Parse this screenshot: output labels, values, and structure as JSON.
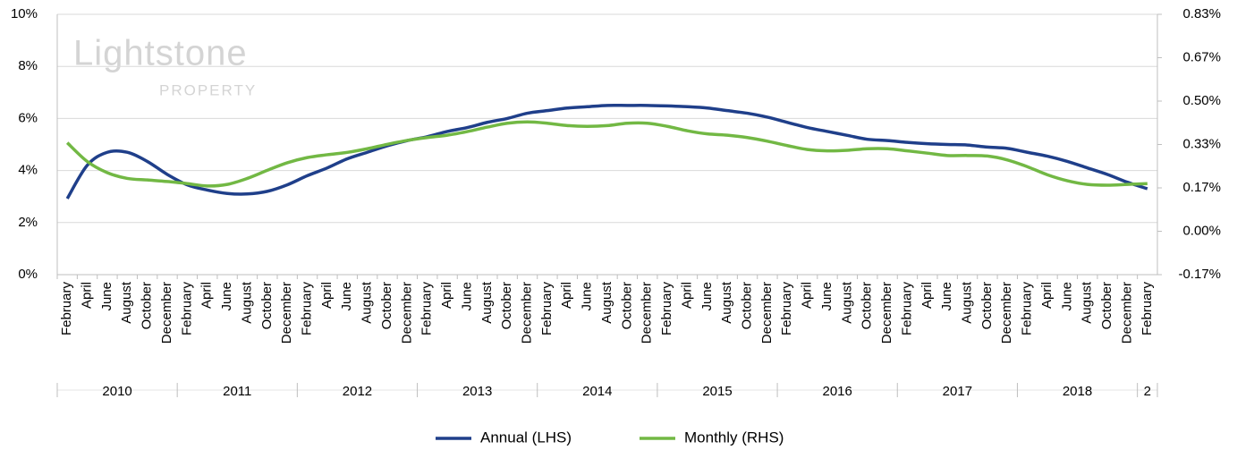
{
  "chart_data": {
    "type": "line",
    "watermark": "Lightstone",
    "watermark_sub": "PROPERTY",
    "categories": [
      "February",
      "April",
      "June",
      "August",
      "October",
      "December",
      "February",
      "April",
      "June",
      "August",
      "October",
      "December",
      "February",
      "April",
      "June",
      "August",
      "October",
      "December",
      "February",
      "April",
      "June",
      "August",
      "October",
      "December",
      "February",
      "April",
      "June",
      "August",
      "October",
      "December",
      "February",
      "April",
      "June",
      "August",
      "October",
      "December",
      "February",
      "April",
      "June",
      "August",
      "October",
      "December",
      "February",
      "April",
      "June",
      "August",
      "October",
      "December",
      "February",
      "April",
      "June",
      "August",
      "October",
      "December",
      "February"
    ],
    "x_groups": [
      {
        "label": "2010",
        "size": 6
      },
      {
        "label": "2011",
        "size": 6
      },
      {
        "label": "2012",
        "size": 6
      },
      {
        "label": "2013",
        "size": 6
      },
      {
        "label": "2014",
        "size": 6
      },
      {
        "label": "2015",
        "size": 6
      },
      {
        "label": "2016",
        "size": 6
      },
      {
        "label": "2017",
        "size": 6
      },
      {
        "label": "2018",
        "size": 6
      },
      {
        "label": "2",
        "size": 1
      }
    ],
    "series": [
      {
        "name": "Annual (LHS)",
        "color": "#1f3f8a",
        "axis": "y",
        "values": [
          2.92,
          4.2,
          4.7,
          4.7,
          4.35,
          3.85,
          3.45,
          3.25,
          3.12,
          3.1,
          3.2,
          3.45,
          3.8,
          4.1,
          4.45,
          4.7,
          4.95,
          5.15,
          5.3,
          5.5,
          5.65,
          5.85,
          6.0,
          6.2,
          6.3,
          6.4,
          6.45,
          6.5,
          6.5,
          6.5,
          6.48,
          6.45,
          6.4,
          6.3,
          6.2,
          6.05,
          5.85,
          5.65,
          5.5,
          5.35,
          5.2,
          5.15,
          5.08,
          5.03,
          5.0,
          4.98,
          4.9,
          4.85,
          4.7,
          4.55,
          4.35,
          4.1,
          3.85,
          3.55,
          3.3
        ]
      },
      {
        "name": "Monthly (RHS)",
        "color": "#72b844",
        "axis": "y2",
        "values": [
          0.34,
          0.268,
          0.225,
          0.203,
          0.197,
          0.191,
          0.183,
          0.174,
          0.18,
          0.203,
          0.234,
          0.263,
          0.283,
          0.294,
          0.303,
          0.317,
          0.334,
          0.349,
          0.36,
          0.369,
          0.383,
          0.4,
          0.415,
          0.42,
          0.415,
          0.406,
          0.403,
          0.406,
          0.415,
          0.415,
          0.403,
          0.386,
          0.374,
          0.369,
          0.36,
          0.346,
          0.329,
          0.314,
          0.309,
          0.311,
          0.317,
          0.317,
          0.309,
          0.3,
          0.291,
          0.291,
          0.289,
          0.274,
          0.248,
          0.217,
          0.194,
          0.18,
          0.177,
          0.18,
          0.183
        ]
      }
    ],
    "ylim": [
      0,
      10
    ],
    "yticks": [
      {
        "value": 0,
        "label": "0%"
      },
      {
        "value": 2,
        "label": "2%"
      },
      {
        "value": 4,
        "label": "4%"
      },
      {
        "value": 6,
        "label": "6%"
      },
      {
        "value": 8,
        "label": "8%"
      },
      {
        "value": 10,
        "label": "10%"
      }
    ],
    "y2lim": [
      -0.16667,
      0.83333
    ],
    "y2ticks": [
      {
        "value": -0.16667,
        "label": "-0.17%"
      },
      {
        "value": 0,
        "label": "0.00%"
      },
      {
        "value": 0.16667,
        "label": "0.17%"
      },
      {
        "value": 0.33333,
        "label": "0.33%"
      },
      {
        "value": 0.5,
        "label": "0.50%"
      },
      {
        "value": 0.66667,
        "label": "0.67%"
      },
      {
        "value": 0.83333,
        "label": "0.83%"
      }
    ],
    "grid": true,
    "legend": "bottom"
  }
}
